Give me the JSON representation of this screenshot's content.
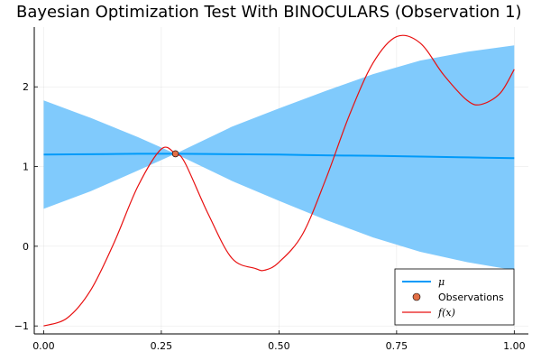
{
  "chart_data": {
    "type": "line",
    "title": "Bayesian Optimization Test With BINOCULARS (Observation 1)",
    "xlabel": "",
    "ylabel": "",
    "xlim": [
      -0.02,
      1.03
    ],
    "ylim": [
      -1.1,
      2.75
    ],
    "grid": true,
    "legend_position": "bottom-right",
    "x_ticks": [
      0.0,
      0.25,
      0.5,
      0.75,
      1.0
    ],
    "x_tick_labels": [
      "0.00",
      "0.25",
      "0.50",
      "0.75",
      "1.00"
    ],
    "y_ticks": [
      -1,
      0,
      1,
      2
    ],
    "y_tick_labels": [
      "−1",
      "0",
      "1",
      "2"
    ],
    "series": [
      {
        "name": "μ",
        "kind": "mean-with-band",
        "color": "#009af9",
        "band_color": "#80cafc",
        "x": [
          0.0,
          0.1,
          0.2,
          0.28,
          0.4,
          0.5,
          0.6,
          0.7,
          0.8,
          0.9,
          1.0
        ],
        "values": [
          1.15,
          1.155,
          1.16,
          1.16,
          1.155,
          1.15,
          1.14,
          1.135,
          1.125,
          1.115,
          1.105
        ],
        "lower": [
          0.47,
          0.69,
          0.95,
          1.16,
          0.82,
          0.57,
          0.33,
          0.11,
          -0.07,
          -0.2,
          -0.3
        ],
        "upper": [
          1.83,
          1.61,
          1.37,
          1.16,
          1.5,
          1.73,
          1.95,
          2.16,
          2.33,
          2.44,
          2.52
        ]
      },
      {
        "name": "Observations",
        "kind": "scatter",
        "color": "#e26f46",
        "x": [
          0.28
        ],
        "values": [
          1.16
        ]
      },
      {
        "name": "f(x)",
        "kind": "line",
        "color": "#e81010",
        "x": [
          0.0,
          0.05,
          0.1,
          0.15,
          0.2,
          0.25,
          0.28,
          0.3,
          0.35,
          0.4,
          0.45,
          0.47,
          0.5,
          0.55,
          0.6,
          0.65,
          0.7,
          0.75,
          0.8,
          0.85,
          0.9,
          0.93,
          0.97,
          1.0
        ],
        "values": [
          -1.0,
          -0.9,
          -0.55,
          0.05,
          0.75,
          1.22,
          1.16,
          1.05,
          0.4,
          -0.15,
          -0.28,
          -0.3,
          -0.2,
          0.15,
          0.85,
          1.65,
          2.3,
          2.63,
          2.55,
          2.15,
          1.83,
          1.78,
          1.92,
          2.22
        ]
      }
    ]
  },
  "legend": {
    "items": [
      {
        "label": "μ",
        "color": "#009af9"
      },
      {
        "label": "Observations",
        "color": "#e26f46"
      },
      {
        "label": "f(x)",
        "color": "#e81010"
      }
    ]
  }
}
